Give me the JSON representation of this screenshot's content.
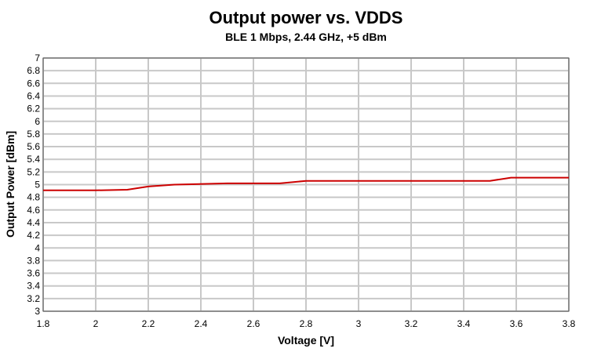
{
  "chart_data": {
    "type": "line",
    "title": "Output power vs. VDDS",
    "subtitle": "BLE 1 Mbps, 2.44 GHz, +5 dBm",
    "xlabel": "Voltage [V]",
    "ylabel": "Output Power [dBm]",
    "xlim": [
      1.8,
      3.8
    ],
    "ylim": [
      3,
      7
    ],
    "xticks": [
      "1.8",
      "2",
      "2.2",
      "2.4",
      "2.6",
      "2.8",
      "3",
      "3.2",
      "3.4",
      "3.6",
      "3.8"
    ],
    "yticks": [
      "3",
      "3.2",
      "3.4",
      "3.6",
      "3.8",
      "4",
      "4.2",
      "4.4",
      "4.6",
      "4.8",
      "5",
      "5.2",
      "5.4",
      "5.6",
      "5.8",
      "6",
      "6.2",
      "6.4",
      "6.6",
      "6.8",
      "7"
    ],
    "grid": true,
    "line_color": "#cc0000",
    "grid_color": "#c8c8c8",
    "series": [
      {
        "x": [
          1.8,
          2.0,
          2.12,
          2.2,
          2.3,
          2.5,
          2.7,
          2.8,
          3.0,
          3.2,
          3.4,
          3.5,
          3.58,
          3.8
        ],
        "y": [
          4.91,
          4.91,
          4.92,
          4.97,
          5.0,
          5.02,
          5.02,
          5.06,
          5.06,
          5.06,
          5.06,
          5.06,
          5.11,
          5.11
        ]
      }
    ]
  }
}
